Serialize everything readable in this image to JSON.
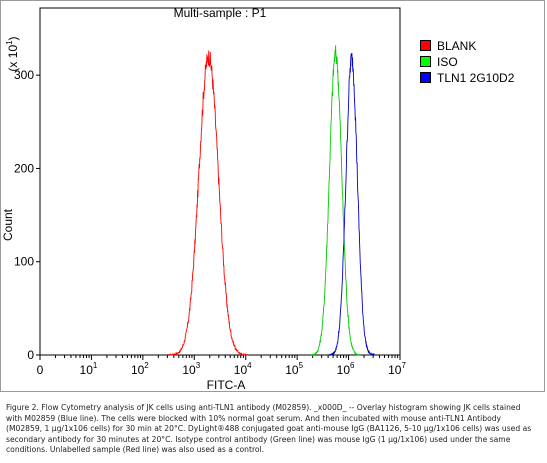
{
  "chart_data": {
    "type": "line",
    "title": "Multi-sample : P1",
    "xlabel": "FITC-A",
    "ylabel": "Count",
    "y_multiplier_label": "(x 10",
    "y_multiplier_exp": "1",
    "y_multiplier_close": ")",
    "xscale": "log",
    "xlim": [
      1,
      10000000
    ],
    "ylim": [
      0,
      372
    ],
    "yticks": [
      "0",
      "100",
      "200",
      "300"
    ],
    "xticks": [
      {
        "base": "0",
        "exp": ""
      },
      {
        "base": "10",
        "exp": "1"
      },
      {
        "base": "10",
        "exp": "2"
      },
      {
        "base": "10",
        "exp": "3"
      },
      {
        "base": "10",
        "exp": "4"
      },
      {
        "base": "10",
        "exp": "5"
      },
      {
        "base": "10",
        "exp": "6"
      },
      {
        "base": "10",
        "exp": "7"
      }
    ],
    "legend_position": "top-right",
    "series": [
      {
        "name": "BLANK",
        "color": "#ff0000",
        "peak_x": 1900,
        "peak_y": 320,
        "width_decades": 0.19
      },
      {
        "name": "ISO",
        "color": "#00cc00",
        "peak_x": 560000,
        "peak_y": 323,
        "width_decades": 0.12
      },
      {
        "name": "TLN1 2G10D2",
        "color": "#0000cc",
        "peak_x": 1150000,
        "peak_y": 318,
        "width_decades": 0.11
      }
    ],
    "legend_colors": [
      "#ff0000",
      "#00ff00",
      "#0000ff"
    ]
  },
  "caption": "Figure 2. Flow Cytometry analysis of JK cells using anti-TLN1 antibody (M02859). _x000D_ -- Overlay histogram showing JK cells stained with M02859 (Blue line). The cells were blocked with 10% normal goat serum. And then incubated with mouse anti-TLN1 Antibody (M02859, 1 µg/1x106 cells) for 30 min at 20°C. DyLight®488 conjugated goat anti-mouse IgG (BA1126, 5-10 µg/1x106 cells) was used as secondary antibody for 30 minutes at 20°C. Isotype control antibody (Green line) was mouse IgG (1 µg/1x106) used under the same conditions. Unlabelled sample (Red line) was also used as a control."
}
